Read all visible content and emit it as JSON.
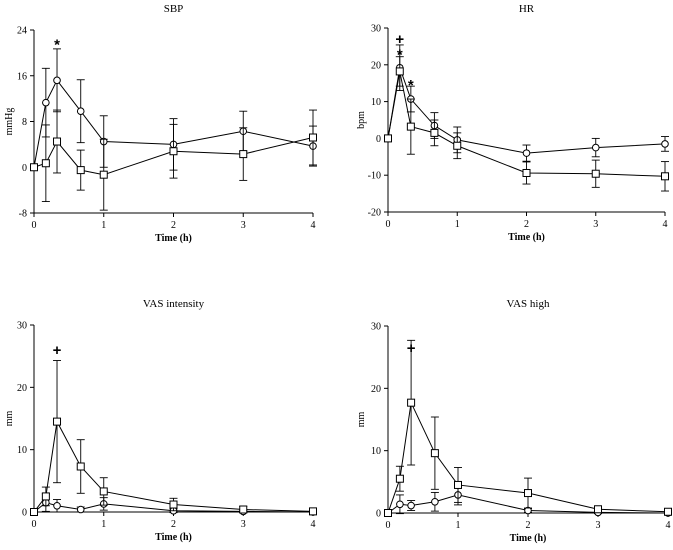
{
  "chart_data": [
    {
      "type": "line",
      "title": "SBP",
      "xlabel": "Time (h)",
      "ylabel": "mmHg",
      "xlim": [
        0,
        4
      ],
      "ylim": [
        -8,
        24
      ],
      "xticks": [
        0,
        1,
        2,
        3,
        4
      ],
      "yticks": [
        -8,
        0,
        8,
        16,
        24
      ],
      "grid": false,
      "series": [
        {
          "marker": "circle",
          "x": [
            0,
            0.17,
            0.33,
            0.67,
            1,
            2,
            3,
            4
          ],
          "values": [
            0,
            11.3,
            15.2,
            9.8,
            4.5,
            4,
            6.3,
            3.7
          ],
          "err": [
            0,
            6,
            5.5,
            5.5,
            4.5,
            4.5,
            3.5,
            3.5
          ]
        },
        {
          "marker": "square",
          "x": [
            0,
            0.17,
            0.33,
            0.67,
            1,
            2,
            3,
            4
          ],
          "values": [
            0,
            0.7,
            4.5,
            -0.5,
            -1.3,
            2.8,
            2.3,
            5.2
          ],
          "err": [
            0,
            6.7,
            5.5,
            3.5,
            6.2,
            4.7,
            4.6,
            4.8
          ]
        }
      ],
      "annotations": [
        {
          "text": "*",
          "x": 0.33,
          "y": 21.5
        }
      ]
    },
    {
      "type": "line",
      "title": "HR",
      "xlabel": "Time (h)",
      "ylabel": "bpm",
      "xlim": [
        0,
        4
      ],
      "ylim": [
        -20,
        30
      ],
      "xticks": [
        0,
        1,
        2,
        3,
        4
      ],
      "yticks": [
        -20,
        -10,
        0,
        10,
        20,
        30
      ],
      "grid": false,
      "series": [
        {
          "marker": "circle",
          "x": [
            0,
            0.17,
            0.33,
            0.67,
            1,
            2,
            3,
            4
          ],
          "values": [
            0,
            19.2,
            10.7,
            3.5,
            -0.4,
            -4,
            -2.5,
            -1.5
          ],
          "err": [
            0,
            6.2,
            3.5,
            3.5,
            3.5,
            2.2,
            2.5,
            2
          ]
        },
        {
          "marker": "square",
          "x": [
            0,
            0.17,
            0.33,
            0.67,
            1,
            2,
            3,
            4
          ],
          "values": [
            0,
            18.2,
            3.2,
            1.5,
            -2,
            -9.4,
            -9.6,
            -10.3
          ],
          "err": [
            0,
            4,
            7.5,
            3.5,
            3.5,
            3,
            3.7,
            4
          ]
        }
      ],
      "annotations": [
        {
          "text": "+",
          "x": 0.17,
          "y": 27
        },
        {
          "text": "*",
          "x": 0.17,
          "y": 22.8
        },
        {
          "text": "*",
          "x": 0.33,
          "y": 14.5
        }
      ]
    },
    {
      "type": "line",
      "title": "VAS intensity",
      "xlabel": "Time (h)",
      "ylabel": "mm",
      "xlim": [
        0,
        4
      ],
      "ylim": [
        0,
        30
      ],
      "xticks": [
        0,
        1,
        2,
        3,
        4
      ],
      "yticks": [
        0,
        10,
        20,
        30
      ],
      "grid": false,
      "series": [
        {
          "marker": "circle",
          "x": [
            0,
            0.17,
            0.33,
            0.67,
            1,
            2,
            3,
            4
          ],
          "values": [
            0,
            1.5,
            1,
            0.4,
            1.3,
            0.2,
            0.1,
            0
          ],
          "err": [
            0,
            1.4,
            1,
            0.4,
            1,
            0.3,
            0.2,
            0
          ]
        },
        {
          "marker": "square",
          "x": [
            0,
            0.17,
            0.33,
            0.67,
            1,
            2,
            3,
            4
          ],
          "values": [
            0,
            2.5,
            14.5,
            7.3,
            3.3,
            1.2,
            0.4,
            0.1
          ],
          "err": [
            0,
            1.5,
            9.8,
            4.3,
            2.2,
            1,
            0.5,
            0.1
          ]
        }
      ],
      "annotations": [
        {
          "text": "+",
          "x": 0.33,
          "y": 26
        }
      ]
    },
    {
      "type": "line",
      "title": "VAS high",
      "xlabel": "Time (h)",
      "ylabel": "mm",
      "xlim": [
        0,
        4
      ],
      "ylim": [
        0,
        30
      ],
      "xticks": [
        0,
        1,
        2,
        3,
        4
      ],
      "yticks": [
        0,
        10,
        20,
        30
      ],
      "grid": false,
      "series": [
        {
          "marker": "circle",
          "x": [
            0,
            0.17,
            0.33,
            0.67,
            1,
            2,
            3,
            4
          ],
          "values": [
            0,
            1.4,
            1.2,
            1.8,
            2.9,
            0.4,
            0.1,
            0
          ],
          "err": [
            0,
            1.5,
            0.8,
            1.5,
            1.6,
            0.3,
            0.2,
            0
          ]
        },
        {
          "marker": "square",
          "x": [
            0,
            0.17,
            0.33,
            0.67,
            1,
            2,
            3,
            4
          ],
          "values": [
            0,
            5.5,
            17.7,
            9.6,
            4.5,
            3.2,
            0.6,
            0.2
          ],
          "err": [
            0,
            2,
            10,
            5.8,
            2.8,
            2.4,
            0.4,
            0.2
          ]
        }
      ],
      "annotations": [
        {
          "text": "+",
          "x": 0.33,
          "y": 26.5
        }
      ]
    }
  ]
}
